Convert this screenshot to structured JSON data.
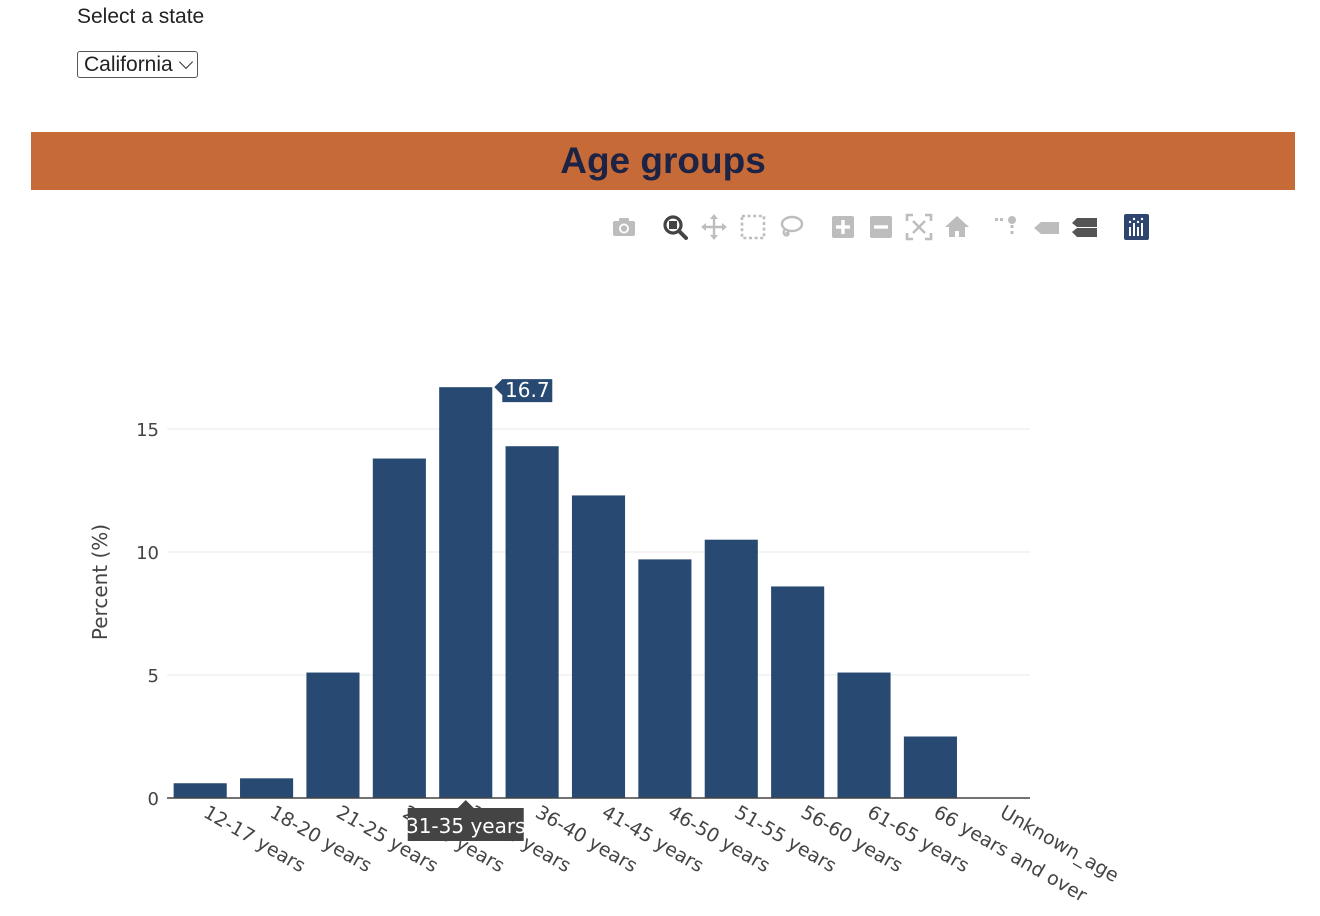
{
  "state_selector": {
    "label": "Select a state",
    "selected": "California"
  },
  "banner": {
    "title": "Age groups",
    "background": "#c66a37",
    "text_color": "#1d2344"
  },
  "modebar": {
    "buttons": [
      {
        "name": "camera-icon",
        "tooltip": "Download plot as a png"
      },
      {
        "name": "zoom-icon",
        "tooltip": "Zoom"
      },
      {
        "name": "pan-icon",
        "tooltip": "Pan"
      },
      {
        "name": "box-select-icon",
        "tooltip": "Box Select"
      },
      {
        "name": "lasso-select-icon",
        "tooltip": "Lasso Select"
      },
      {
        "name": "zoom-in-icon",
        "tooltip": "Zoom in"
      },
      {
        "name": "zoom-out-icon",
        "tooltip": "Zoom out"
      },
      {
        "name": "autoscale-icon",
        "tooltip": "Autoscale"
      },
      {
        "name": "reset-axes-icon",
        "tooltip": "Reset axes"
      },
      {
        "name": "spike-lines-icon",
        "tooltip": "Toggle Spike Lines"
      },
      {
        "name": "hover-closest-icon",
        "tooltip": "Show closest data on hover"
      },
      {
        "name": "hover-compare-icon",
        "tooltip": "Compare data on hover"
      },
      {
        "name": "plotly-logo-icon",
        "tooltip": "Produced with Plotly"
      }
    ]
  },
  "chart_data": {
    "type": "bar",
    "title": "",
    "xlabel": "",
    "ylabel": "Percent (%)",
    "ylim": [
      0,
      18.2
    ],
    "yticks": [
      0,
      5,
      10,
      15
    ],
    "grid": true,
    "bar_color": "#284a72",
    "categories": [
      "12-17 years",
      "18-20 years",
      "21-25 years",
      "26-30 years",
      "31-35 years",
      "36-40 years",
      "41-45 years",
      "46-50 years",
      "51-55 years",
      "56-60 years",
      "61-65 years",
      "66 years and over",
      "Unknown_age"
    ],
    "values": [
      0.6,
      0.8,
      5.1,
      13.8,
      16.7,
      14.3,
      12.3,
      9.7,
      10.5,
      8.6,
      5.1,
      2.5,
      0
    ],
    "hover": {
      "category": "31-35 years",
      "value": "16.7",
      "value_bg": "#284a72",
      "label_bg": "#444444"
    }
  }
}
